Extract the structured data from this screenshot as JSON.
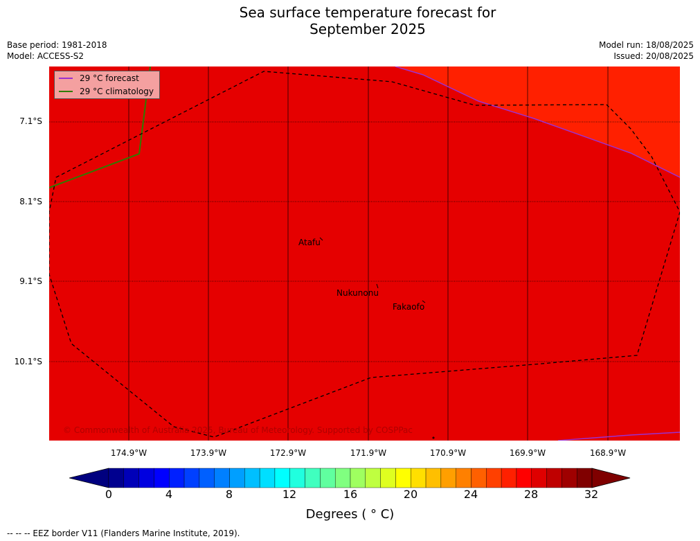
{
  "title": {
    "line1": "Sea surface temperature forecast for",
    "line2": "September 2025"
  },
  "meta": {
    "base_period": "Base period: 1981-2018",
    "model": "Model: ACCESS-S2",
    "model_run": "Model run: 18/08/2025",
    "issued": "Issued: 20/08/2025"
  },
  "legend": {
    "forecast_label": "29 °C  forecast",
    "forecast_color": "#9b30d0",
    "climatology_label": "29 °C  climatology",
    "climatology_color": "#2e7d00"
  },
  "map": {
    "lat_ticks": [
      "7.1°S",
      "8.1°S",
      "9.1°S",
      "10.1°S"
    ],
    "lon_ticks": [
      "174.9°W",
      "173.9°W",
      "172.9°W",
      "171.9°W",
      "170.9°W",
      "169.9°W",
      "168.9°W"
    ],
    "places": [
      "Atafu",
      "Nukunonu",
      "Fakaofo"
    ],
    "base_color": "#e50000",
    "warm_color": "#ff2000",
    "copyright": "© Commonwealth of Australia 2025, Bureau of Meteorology. Supported by COSPPac"
  },
  "colorbar": {
    "ticks": [
      "0",
      "4",
      "8",
      "12",
      "16",
      "20",
      "24",
      "28",
      "32"
    ],
    "label": "Degrees ( ° C)",
    "colors": [
      "#00008f",
      "#0000b8",
      "#0000e0",
      "#0000ff",
      "#0020ff",
      "#0040ff",
      "#0060ff",
      "#0080ff",
      "#009fff",
      "#00bfff",
      "#00dfff",
      "#00ffff",
      "#20ffdf",
      "#40ffbf",
      "#60ff9f",
      "#80ff80",
      "#9fff60",
      "#bfff40",
      "#dfff20",
      "#ffff00",
      "#ffdf00",
      "#ffbf00",
      "#ff9f00",
      "#ff8000",
      "#ff6000",
      "#ff4000",
      "#ff2000",
      "#ff0000",
      "#df0000",
      "#bf0000",
      "#9f0000",
      "#800000"
    ],
    "low_color": "#00007f",
    "high_color": "#7f0000"
  },
  "eez_note": "--  --  -- EEZ border V11 (Flanders Marine Institute, 2019)."
}
